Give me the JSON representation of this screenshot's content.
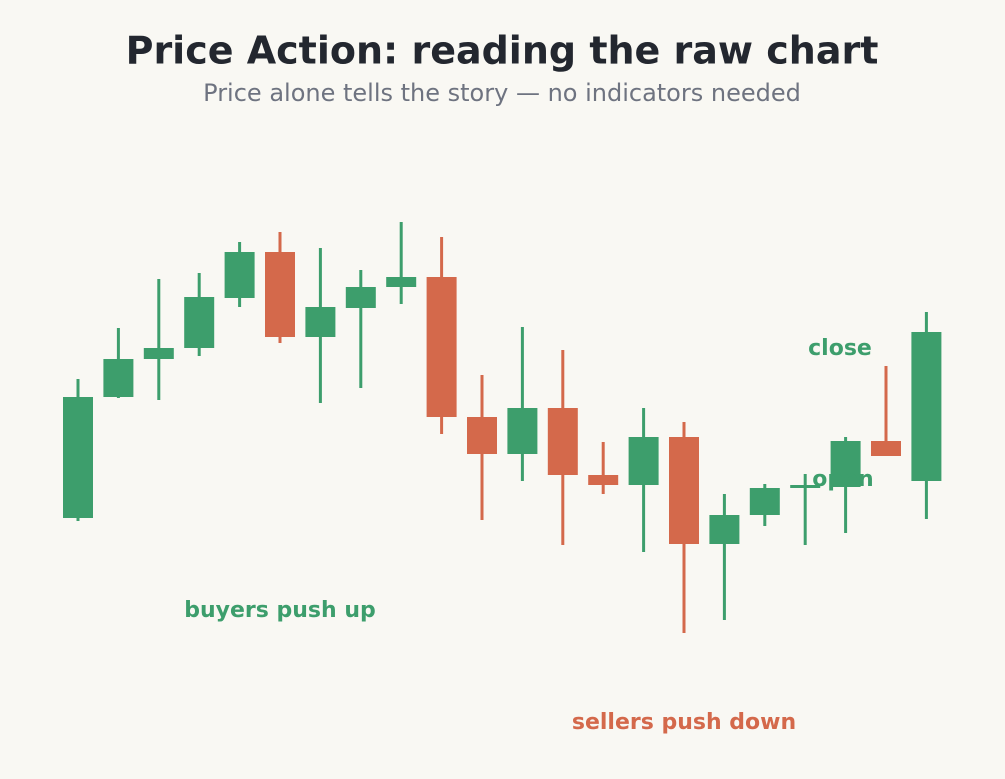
{
  "chart_data": {
    "type": "candlestick",
    "title": "Price Action: reading the raw chart",
    "subtitle": "Price alone tells the story — no indicators needed",
    "up_color": "#3d9e6c",
    "down_color": "#d4694b",
    "ylim": [
      6,
      50
    ],
    "open": [
      18.2,
      30.3,
      34.1,
      35.2,
      40.2,
      44.8,
      36.3,
      39.2,
      41.3,
      42.3,
      28.3,
      24.6,
      29.2,
      22.5,
      21.5,
      26.3,
      15.6,
      18.5,
      21.2,
      21.3,
      25.9,
      21.9
    ],
    "high": [
      32.1,
      37.2,
      42.1,
      42.7,
      45.8,
      46.8,
      45.2,
      43.0,
      47.8,
      46.3,
      32.5,
      37.3,
      35.0,
      25.8,
      29.2,
      27.8,
      20.6,
      21.6,
      22.6,
      26.3,
      33.4,
      38.8
    ],
    "low": [
      17.9,
      30.2,
      30.0,
      34.4,
      39.3,
      35.7,
      29.7,
      31.2,
      39.6,
      26.6,
      18.0,
      21.9,
      15.5,
      20.6,
      14.8,
      6.7,
      8.0,
      17.4,
      15.5,
      16.7,
      24.4,
      18.1
    ],
    "close": [
      30.3,
      34.1,
      35.2,
      40.3,
      44.8,
      36.3,
      39.3,
      41.3,
      42.3,
      28.3,
      24.6,
      29.2,
      22.5,
      21.5,
      26.3,
      15.6,
      18.5,
      21.2,
      21.5,
      25.9,
      24.4,
      36.8
    ],
    "annotations": [
      {
        "text": "close",
        "color": "#3d9e6c"
      },
      {
        "text": "open",
        "color": "#3d9e6c"
      },
      {
        "text": "buyers push up",
        "color": "#3d9e6c"
      },
      {
        "text": "sellers push down",
        "color": "#d4694b"
      }
    ]
  }
}
